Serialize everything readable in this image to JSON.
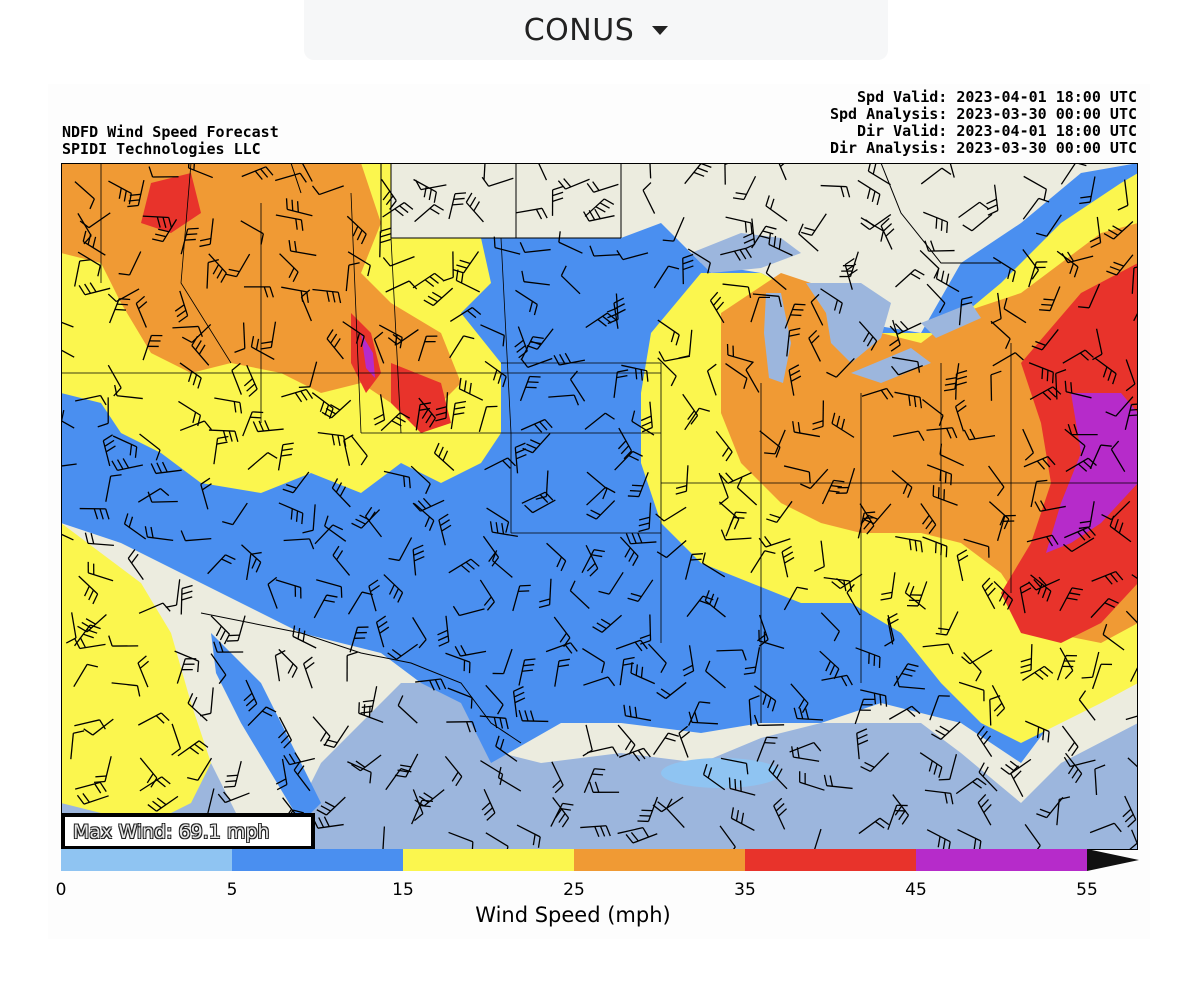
{
  "region_select": {
    "label": "CONUS",
    "icon": "caret-down-icon"
  },
  "title": {
    "line1": "NDFD Wind Speed Forecast",
    "line2": "SPIDI Technologies LLC"
  },
  "valid_info": [
    "Spd Valid: 2023-04-01 18:00 UTC",
    "Spd Analysis: 2023-03-30 00:00 UTC",
    "Dir Valid: 2023-04-01 18:00 UTC",
    "Dir Analysis: 2023-03-30 00:00 UTC"
  ],
  "max_wind": "Max Wind: 69.1 mph",
  "colorbar": {
    "label": "Wind Speed (mph)",
    "ticks": [
      "0",
      "5",
      "15",
      "25",
      "35",
      "45",
      "55"
    ],
    "bins": [
      {
        "from": 0,
        "to": 5,
        "color": "#8fc4f2"
      },
      {
        "from": 5,
        "to": 15,
        "color": "#4a8ff0"
      },
      {
        "from": 15,
        "to": 25,
        "color": "#fbf64e"
      },
      {
        "from": 25,
        "to": 35,
        "color": "#f09a34"
      },
      {
        "from": 35,
        "to": 45,
        "color": "#e8332b"
      },
      {
        "from": 45,
        "to": 55,
        "color": "#b62bca"
      }
    ],
    "extend": "max"
  },
  "colors": {
    "land": "#ececdf",
    "water": "#9cb6dd"
  }
}
